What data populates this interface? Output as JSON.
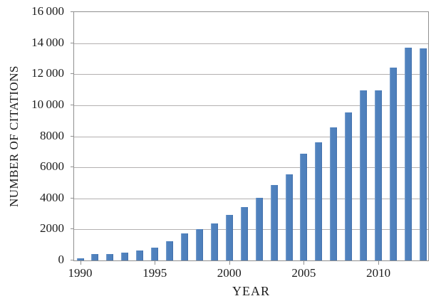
{
  "figure": {
    "background_color": "#ffffff",
    "bar_fill_color": "#4f81bd",
    "bar_edge_dark_color": "#3f6ca8",
    "bar_edge_light_color": "#7fa3d0",
    "gridline_color": "#b3b0b0",
    "axis_line_color": "#8f8f8f",
    "text_color": "#1c1c1c"
  },
  "chart_data": {
    "type": "bar",
    "title": "",
    "xlabel": "YEAR",
    "ylabel": "NUMBER OF CITATIONS",
    "categories": [
      1990,
      1991,
      1992,
      1993,
      1994,
      1995,
      1996,
      1997,
      1998,
      1999,
      2000,
      2001,
      2002,
      2003,
      2004,
      2005,
      2006,
      2007,
      2008,
      2009,
      2010,
      2011,
      2012,
      2013
    ],
    "values": [
      140,
      400,
      420,
      500,
      640,
      830,
      1220,
      1750,
      2040,
      2400,
      2950,
      3450,
      4030,
      4880,
      5560,
      6870,
      7630,
      8580,
      9520,
      10980,
      10980,
      12430,
      13700,
      13680
    ],
    "ylim": [
      0,
      16000
    ],
    "ytick_interval": 2000,
    "ytick_labels": [
      "0",
      "2000",
      "4000",
      "6000",
      "8000",
      "10 000",
      "12 000",
      "14 000",
      "16 000"
    ],
    "xticks": [
      1990,
      1995,
      2000,
      2005,
      2010
    ],
    "grid": true,
    "legend_position": "none",
    "bar_color_name": "steel-blue"
  }
}
